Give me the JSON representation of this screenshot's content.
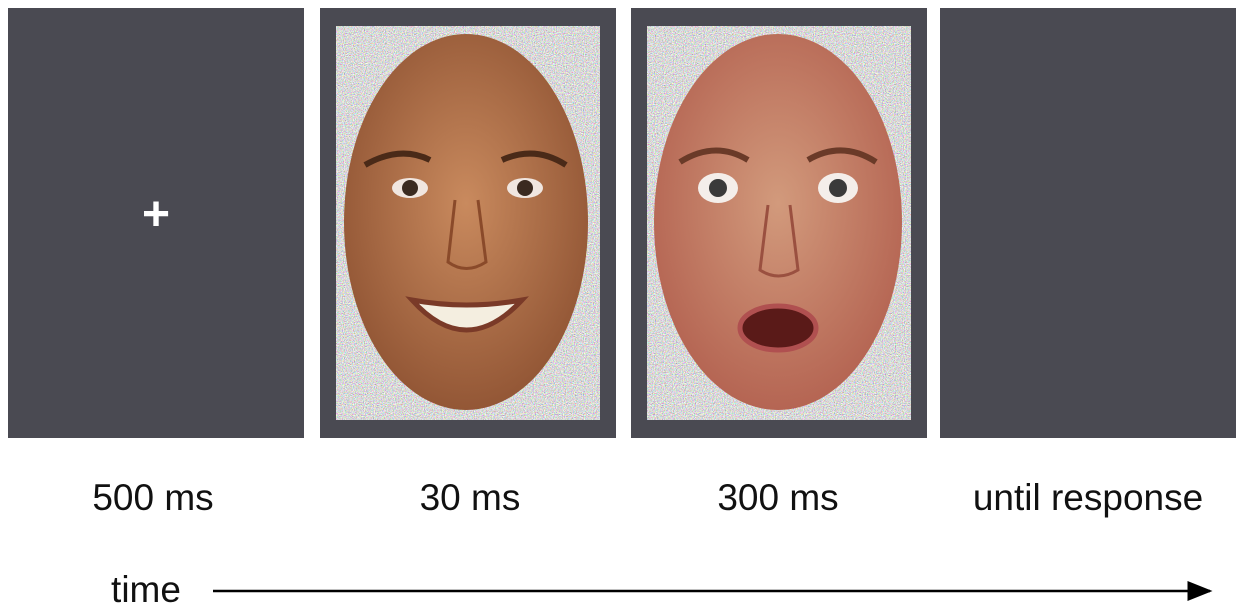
{
  "panels": [
    {
      "content": "+",
      "label": "500 ms"
    },
    {
      "label": "30 ms"
    },
    {
      "label": "300 ms"
    },
    {
      "label": "until response"
    }
  ],
  "axis_label": "time"
}
